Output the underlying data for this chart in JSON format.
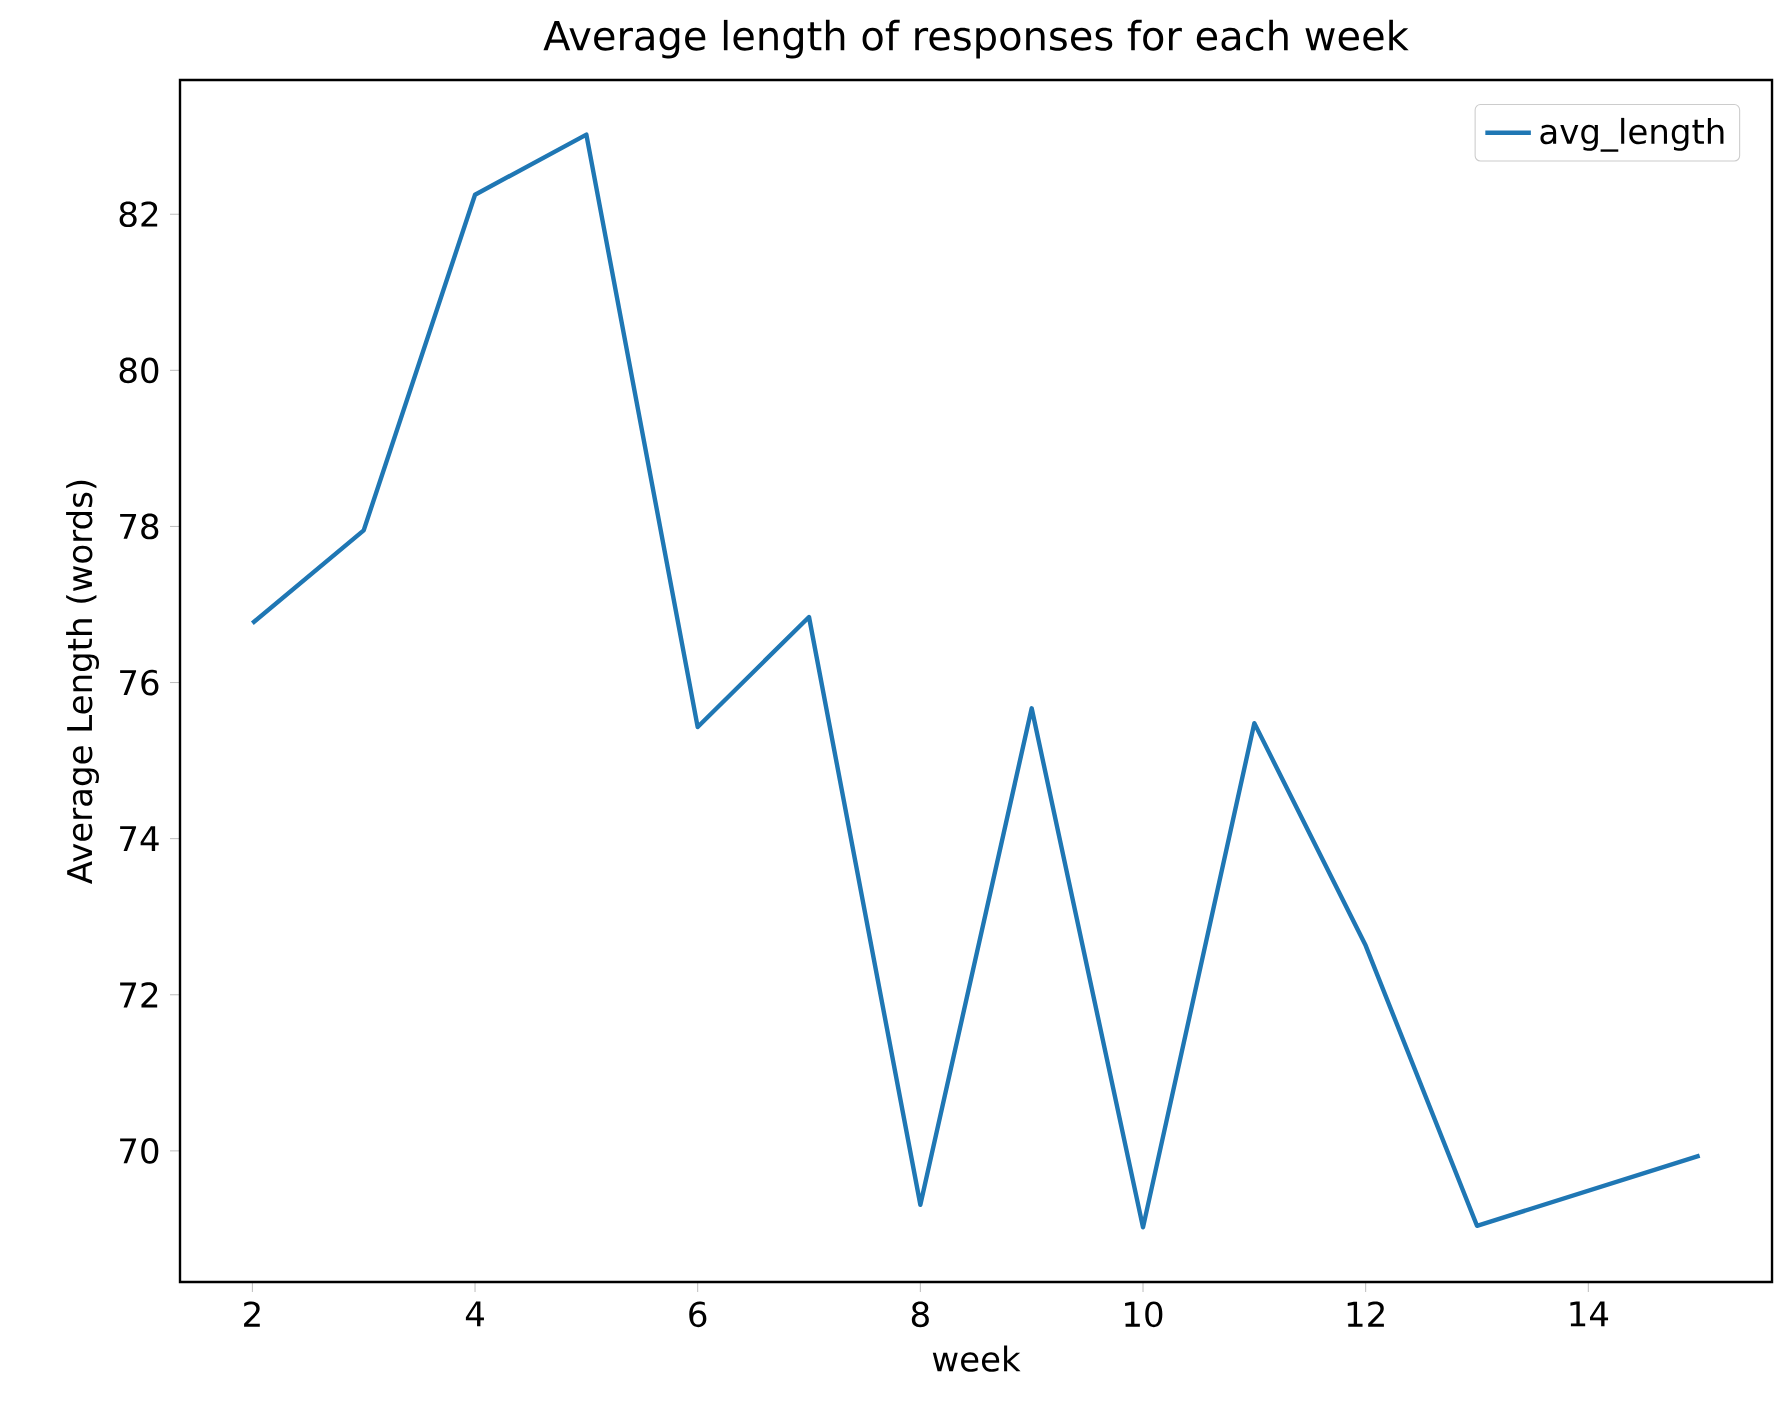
{
  "chart_data": {
    "type": "line",
    "title": "Average length of responses for each week",
    "xlabel": "week",
    "ylabel": "Average Length (words)",
    "x": [
      2,
      3,
      4,
      5,
      6,
      7,
      8,
      9,
      10,
      11,
      12,
      13,
      15
    ],
    "series": [
      {
        "name": "avg_length",
        "color": "#1f77b4",
        "values": [
          76.76,
          77.95,
          82.25,
          83.02,
          75.43,
          76.84,
          69.31,
          75.67,
          69.02,
          75.48,
          72.63,
          69.04,
          69.94
        ]
      }
    ],
    "xlim": [
      1.35,
      15.65
    ],
    "ylim": [
      68.32,
      83.72
    ],
    "xticks": [
      2,
      4,
      6,
      8,
      10,
      12,
      14
    ],
    "yticks": [
      70,
      72,
      74,
      76,
      78,
      80,
      82
    ],
    "legend": "top right",
    "grid": false,
    "marker": "none",
    "line_style": "solid"
  }
}
